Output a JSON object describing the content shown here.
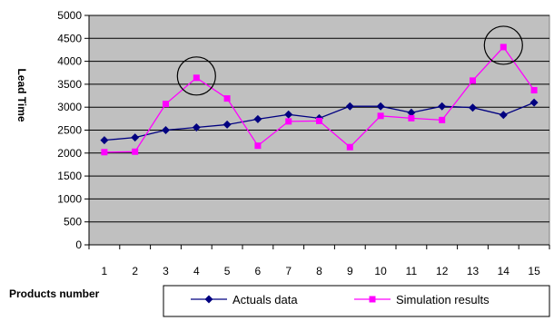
{
  "chart_data": {
    "type": "line",
    "title": "",
    "xlabel": "Products number",
    "ylabel": "Lead Time",
    "x": [
      1,
      2,
      3,
      4,
      5,
      6,
      7,
      8,
      9,
      10,
      11,
      12,
      13,
      14,
      15
    ],
    "ylim": [
      0,
      5000
    ],
    "yticks": [
      0,
      500,
      1000,
      1500,
      2000,
      2500,
      3000,
      3500,
      4000,
      4500,
      5000
    ],
    "grid": true,
    "legend_position": "bottom-right",
    "series": [
      {
        "name": "Actuals data",
        "color": "#000080",
        "marker": "diamond",
        "values": [
          2280,
          2340,
          2500,
          2560,
          2620,
          2740,
          2840,
          2760,
          3020,
          3020,
          2880,
          3020,
          2990,
          2830,
          3100
        ]
      },
      {
        "name": "Simulation results",
        "color": "#ff00ff",
        "marker": "square",
        "values": [
          2020,
          2030,
          3070,
          3640,
          3190,
          2160,
          2690,
          2700,
          2130,
          2810,
          2760,
          2720,
          3580,
          4310,
          3370
        ]
      }
    ],
    "annotations": [
      {
        "shape": "circle",
        "x": 4,
        "y": 3640
      },
      {
        "shape": "circle",
        "x": 14,
        "y": 4310
      }
    ],
    "colors": {
      "plot_background": "#c0c0c0",
      "gridline": "#000000"
    }
  }
}
